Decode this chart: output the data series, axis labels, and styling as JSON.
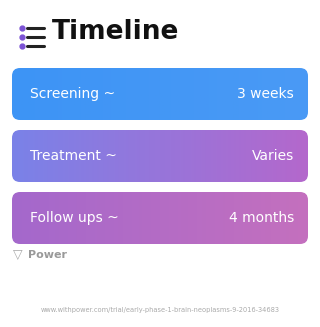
{
  "title": "Timeline",
  "background_color": "#ffffff",
  "rows": [
    {
      "label": "Screening ~",
      "value": "3 weeks",
      "c_left": "#3d94f5",
      "c_right": "#4a9af5"
    },
    {
      "label": "Treatment ~",
      "value": "Varies",
      "c_left": "#7a82e8",
      "c_right": "#b468cc"
    },
    {
      "label": "Follow ups ~",
      "value": "4 months",
      "c_left": "#a468cc",
      "c_right": "#c470be"
    }
  ],
  "footer_text": "Power",
  "footer_url": "www.withpower.com/trial/early-phase-1-brain-neoplasms-9-2016-34683",
  "icon_color": "#7b52d4",
  "title_fontsize": 19,
  "label_fontsize": 10,
  "value_fontsize": 10,
  "footer_fontsize": 8,
  "url_fontsize": 4.8
}
